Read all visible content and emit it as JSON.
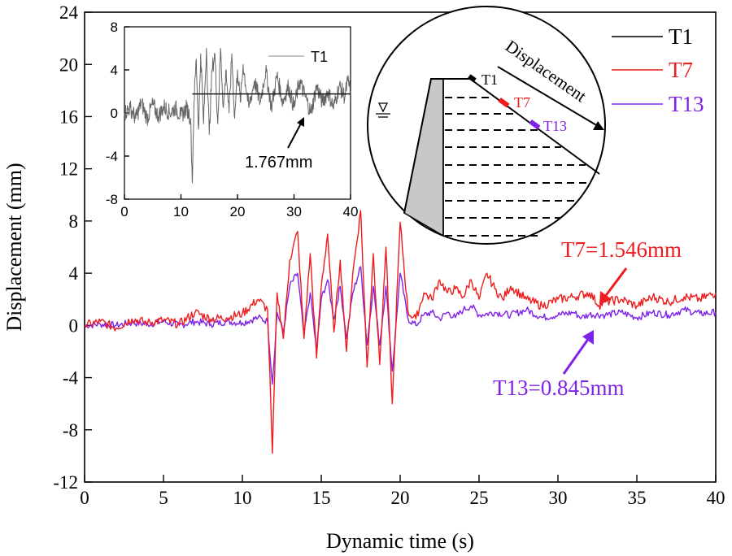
{
  "chart_data": [
    {
      "type": "line",
      "xlabel": "Dynamic time (s)",
      "ylabel": "Displacement (mm)",
      "xlim": [
        0,
        40
      ],
      "ylim": [
        -12,
        24
      ],
      "x_ticks": [
        "0",
        "5",
        "10",
        "15",
        "20",
        "25",
        "30",
        "35",
        "40"
      ],
      "y_ticks": [
        "-12",
        "-8",
        "-4",
        "0",
        "4",
        "8",
        "12",
        "16",
        "20",
        "24"
      ],
      "legend_position": "top-right",
      "series": [
        {
          "name": "T1",
          "color": "#000000",
          "x": [],
          "values": []
        },
        {
          "name": "T7",
          "color": "#ee1c1c",
          "x": [
            0,
            1,
            2,
            3,
            4,
            5,
            6,
            7,
            8,
            9,
            10,
            11,
            11.6,
            11.9,
            12.2,
            12.6,
            13,
            13.5,
            13.9,
            14.3,
            14.7,
            15,
            15.4,
            15.8,
            16.2,
            16.6,
            17,
            17.5,
            17.9,
            18.3,
            18.7,
            19.1,
            19.5,
            20,
            20.5,
            21,
            21.5,
            22,
            22.5,
            23,
            23.5,
            24,
            24.5,
            25,
            25.5,
            26,
            26.5,
            27,
            28,
            29,
            30,
            31,
            32,
            32.6,
            33,
            34,
            35,
            36,
            37,
            38,
            39,
            40
          ],
          "values": [
            0,
            0.3,
            -0.2,
            0.5,
            0.2,
            0.4,
            0.1,
            1.0,
            0.5,
            0.6,
            0.9,
            2.0,
            1.2,
            -9.8,
            2.5,
            -1.0,
            5.0,
            7.2,
            -1.0,
            5.5,
            -2.5,
            3.0,
            7.0,
            -0.5,
            5.0,
            -2.0,
            4.0,
            8.8,
            -3.2,
            5.5,
            -3.0,
            6.0,
            -6.0,
            7.9,
            1.0,
            0.5,
            2.5,
            2.0,
            3.5,
            2.5,
            2.8,
            2.2,
            3.5,
            2.0,
            4.0,
            2.8,
            2.0,
            3.0,
            2.0,
            1.5,
            2.0,
            2.2,
            2.5,
            1.546,
            1.8,
            2.0,
            1.5,
            2.2,
            1.8,
            2.2,
            2.0,
            2.5
          ]
        },
        {
          "name": "T13",
          "color": "#7f23e8",
          "x": [
            0,
            1,
            2,
            3,
            4,
            5,
            6,
            7,
            8,
            9,
            10,
            11,
            11.6,
            11.9,
            12.2,
            12.6,
            13,
            13.5,
            13.9,
            14.3,
            14.7,
            15,
            15.4,
            15.8,
            16.2,
            16.6,
            17,
            17.5,
            17.9,
            18.3,
            18.7,
            19.1,
            19.5,
            20,
            20.5,
            21,
            21.5,
            22,
            22.5,
            23,
            23.5,
            24,
            24.5,
            25,
            26,
            27,
            28,
            29,
            30,
            31,
            31.5,
            32,
            33,
            34,
            35,
            36,
            37,
            38,
            39,
            40
          ],
          "values": [
            0,
            0.1,
            0.0,
            0.2,
            0.1,
            0.3,
            0.0,
            0.3,
            0.1,
            0.3,
            0.2,
            0.6,
            0.3,
            -4.5,
            1.0,
            -0.5,
            3.0,
            4.0,
            -0.8,
            2.5,
            -2.0,
            2.0,
            3.5,
            0.5,
            3.0,
            -1.0,
            2.5,
            4.5,
            -1.5,
            3.0,
            -1.5,
            3.0,
            -3.5,
            4.0,
            0.5,
            0.0,
            0.8,
            1.0,
            0.5,
            1.0,
            0.6,
            1.2,
            1.5,
            0.8,
            1.0,
            0.8,
            1.2,
            0.6,
            0.8,
            1.0,
            0.6,
            0.845,
            0.8,
            1.0,
            0.6,
            1.0,
            0.8,
            1.2,
            0.9,
            1.0
          ]
        }
      ],
      "annotations": [
        {
          "text": "T7=1.546mm",
          "color": "#ee1c1c"
        },
        {
          "text": "T13=0.845mm",
          "color": "#7f23e8"
        }
      ]
    },
    {
      "type": "line",
      "xlim": [
        0,
        40
      ],
      "ylim": [
        -8,
        8
      ],
      "x_ticks": [
        "0",
        "10",
        "20",
        "30",
        "40"
      ],
      "y_ticks": [
        "-8",
        "-4",
        "0",
        "4",
        "8"
      ],
      "series": [
        {
          "name": "T1",
          "color": "#666666",
          "x": [
            0,
            1,
            2,
            3,
            4,
            5,
            6,
            7,
            8,
            9,
            10,
            11,
            11.7,
            12.0,
            12.3,
            12.7,
            13.1,
            13.5,
            14.0,
            14.5,
            15.0,
            15.5,
            16.0,
            16.5,
            17.0,
            17.5,
            18.0,
            18.5,
            19.0,
            19.5,
            20.0,
            20.5,
            21.0,
            22.0,
            23.0,
            24.0,
            25.0,
            26.0,
            27.0,
            28.0,
            29.0,
            30.0,
            31.0,
            32.0,
            33.0,
            34.0,
            35.0,
            36.0,
            37.0,
            38.0,
            39.0,
            39.5,
            40
          ],
          "values": [
            0,
            0.5,
            -0.5,
            1.0,
            -0.5,
            0.8,
            -0.3,
            0.6,
            0.0,
            0.5,
            -0.3,
            0.5,
            -0.5,
            -6.5,
            1.0,
            5.0,
            -1.5,
            5.5,
            -1.0,
            6.0,
            -2.0,
            4.0,
            5.5,
            -1.0,
            6.0,
            0.5,
            4.0,
            0.0,
            5.5,
            -0.5,
            4.0,
            1.0,
            4.5,
            0.5,
            3.0,
            1.0,
            4.0,
            0.5,
            3.5,
            1.0,
            2.5,
            0.5,
            3.0,
            1.5,
            0.0,
            2.5,
            1.0,
            2.0,
            0.5,
            2.5,
            1.5,
            3.0,
            2.0
          ]
        }
      ],
      "reference_line": {
        "y": 1.767,
        "x_start": 12
      },
      "annotations": [
        {
          "text": "1.767mm"
        }
      ]
    }
  ],
  "diagram": {
    "labels": [
      "T1",
      "T7",
      "T13",
      "Displacement"
    ],
    "colors": {
      "T1": "#000000",
      "T7": "#ee1c1c",
      "T13": "#7f23e8"
    }
  }
}
